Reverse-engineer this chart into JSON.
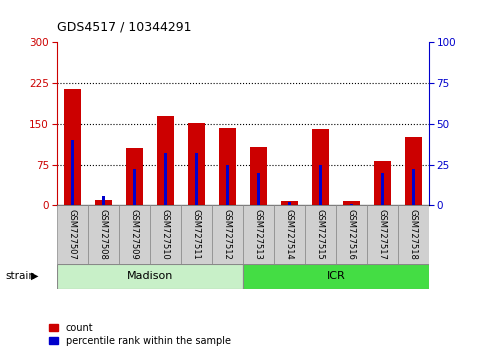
{
  "title": "GDS4517 / 10344291",
  "samples": [
    "GSM727507",
    "GSM727508",
    "GSM727509",
    "GSM727510",
    "GSM727511",
    "GSM727512",
    "GSM727513",
    "GSM727514",
    "GSM727515",
    "GSM727516",
    "GSM727517",
    "GSM727518"
  ],
  "count_values": [
    215,
    10,
    105,
    165,
    152,
    143,
    108,
    8,
    140,
    8,
    82,
    125
  ],
  "percentile_values": [
    40,
    6,
    22,
    32,
    32,
    25,
    20,
    2,
    25,
    1,
    20,
    22
  ],
  "red_color": "#cc0000",
  "blue_color": "#0000cc",
  "left_ylim": [
    0,
    300
  ],
  "right_ylim": [
    0,
    100
  ],
  "left_yticks": [
    0,
    75,
    150,
    225,
    300
  ],
  "right_yticks": [
    0,
    25,
    50,
    75,
    100
  ],
  "madison_color": "#c8f0c8",
  "icr_color": "#44dd44",
  "strain_label": "strain",
  "madison_label": "Madison",
  "icr_label": "ICR",
  "legend_count": "count",
  "legend_percentile": "percentile rank within the sample",
  "bg_color": "#ffffff",
  "tick_area_color": "#d0d0d0",
  "red_bar_width": 0.55,
  "blue_bar_width": 0.1
}
